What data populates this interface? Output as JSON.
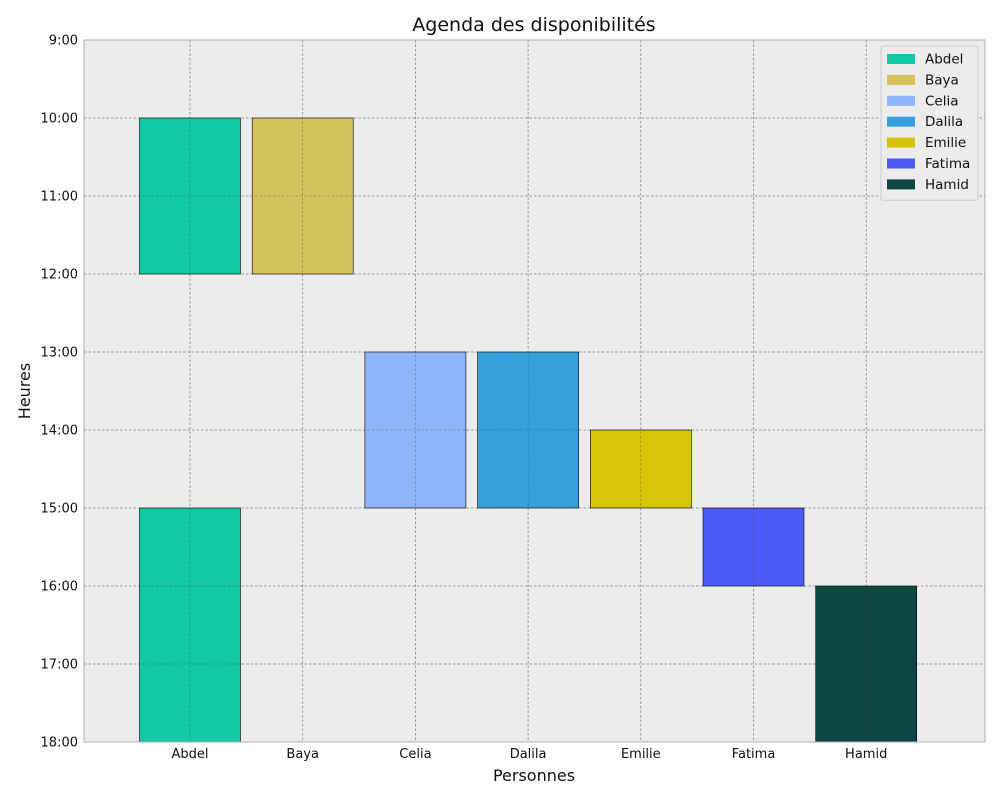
{
  "chart_data": {
    "type": "bar",
    "title": "Agenda des disponibilités",
    "xlabel": "Personnes",
    "ylabel": "Heures",
    "categories": [
      "Abdel",
      "Baya",
      "Celia",
      "Dalila",
      "Emilie",
      "Fatima",
      "Hamid"
    ],
    "y_ticks": [
      "9:00",
      "10:00",
      "11:00",
      "12:00",
      "13:00",
      "14:00",
      "15:00",
      "16:00",
      "17:00",
      "18:00"
    ],
    "ylim": [
      "9:00",
      "18:00"
    ],
    "y_inverted": true,
    "grid": true,
    "legend_position": "top-right",
    "series": [
      {
        "name": "Abdel",
        "color": "#12c8a6",
        "slots": [
          {
            "category": "Abdel",
            "start": "10:00",
            "end": "12:00"
          },
          {
            "category": "Abdel",
            "start": "15:00",
            "end": "18:00"
          }
        ]
      },
      {
        "name": "Baya",
        "color": "#d4c25c",
        "slots": [
          {
            "category": "Baya",
            "start": "10:00",
            "end": "12:00"
          }
        ]
      },
      {
        "name": "Celia",
        "color": "#8eb4fa",
        "slots": [
          {
            "category": "Celia",
            "start": "13:00",
            "end": "15:00"
          }
        ]
      },
      {
        "name": "Dalila",
        "color": "#36a0dc",
        "slots": [
          {
            "category": "Dalila",
            "start": "13:00",
            "end": "15:00"
          }
        ]
      },
      {
        "name": "Emilie",
        "color": "#d4c508",
        "slots": [
          {
            "category": "Emilie",
            "start": "14:00",
            "end": "15:00"
          }
        ]
      },
      {
        "name": "Fatima",
        "color": "#4c5af7",
        "slots": [
          {
            "category": "Fatima",
            "start": "15:00",
            "end": "16:00"
          }
        ]
      },
      {
        "name": "Hamid",
        "color": "#0d4643",
        "slots": [
          {
            "category": "Hamid",
            "start": "16:00",
            "end": "18:00"
          }
        ]
      }
    ]
  }
}
